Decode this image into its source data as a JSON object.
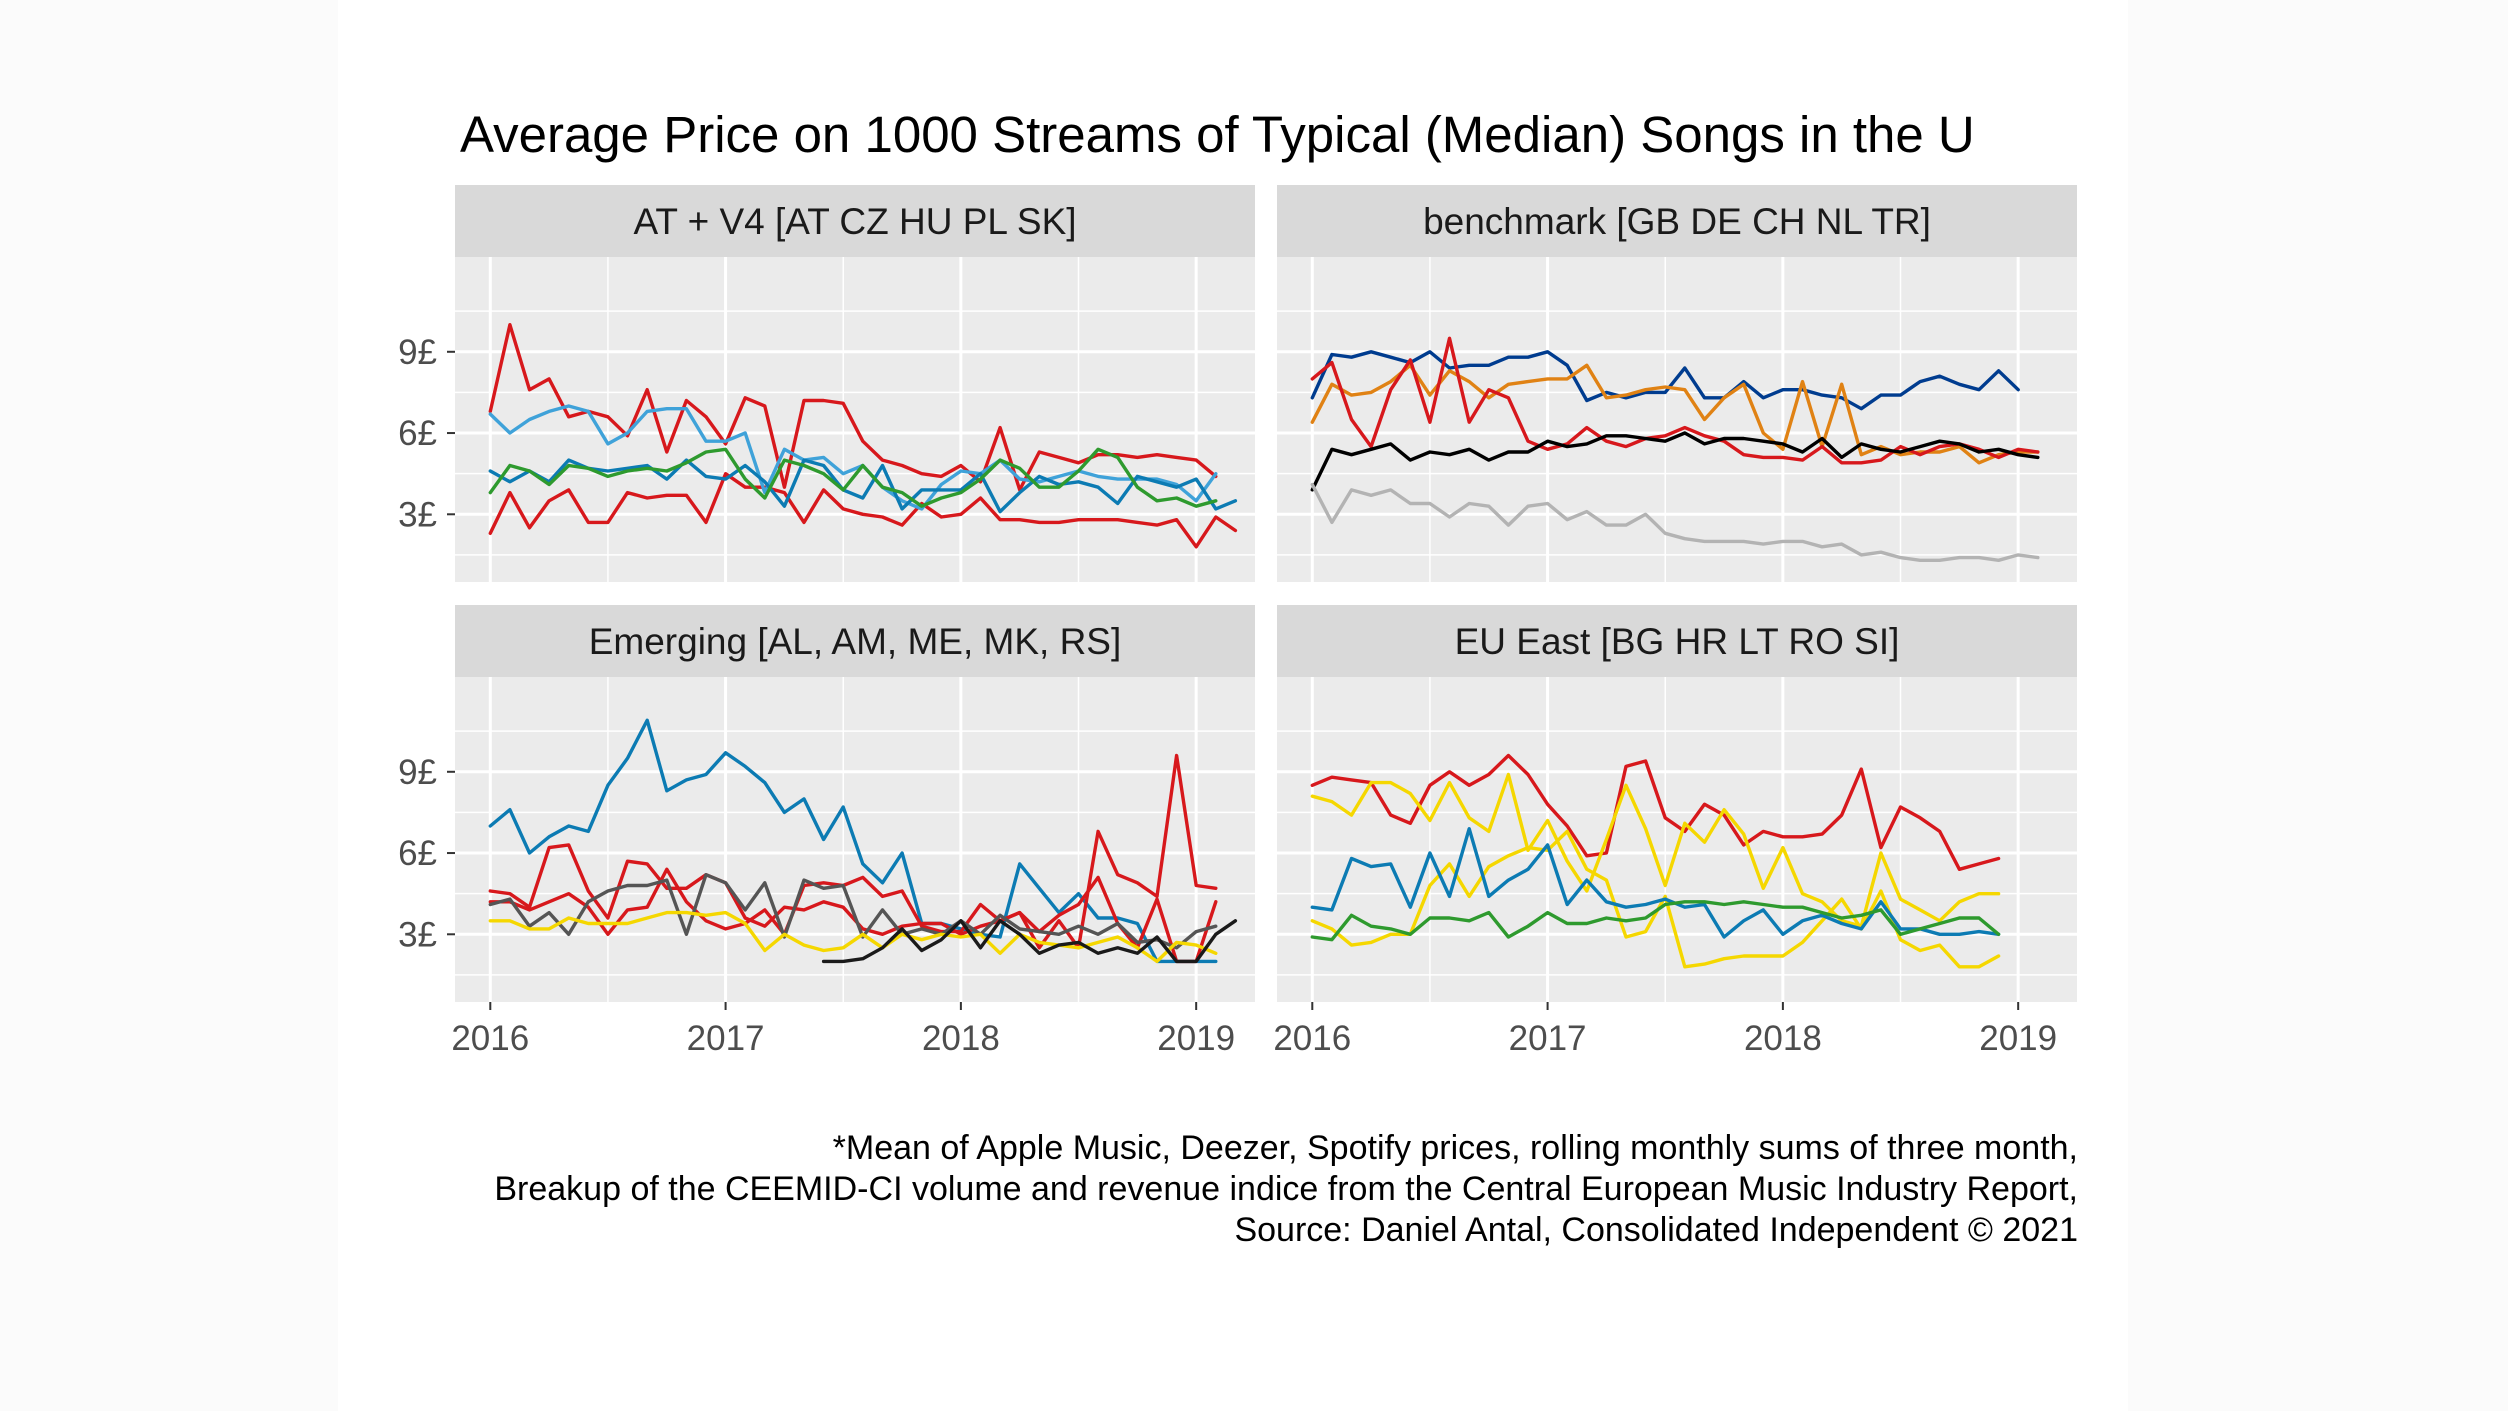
{
  "title": "Average Price on 1000 Streams of Typical (Median) Songs in the U",
  "caption": [
    "*Mean of Apple Music, Deezer, Spotify prices, rolling monthly sums of three month,",
    "Breakup of the CEEMID-CI volume and revenue indice from the Central European Music Industry Report,",
    "Source: Daniel Antal, Consolidated Independent © 2021"
  ],
  "chart_data": {
    "type": "line",
    "title": "Average Price on 1000 Streams of Typical (Median) Songs in the U",
    "xlabel": "",
    "ylabel": "",
    "x_start": 2016.0,
    "x_step": 0.0833333,
    "xlim": [
      2015.85,
      2019.25
    ],
    "ylim": [
      0.5,
      12.5
    ],
    "x_ticks": [
      2016,
      2017,
      2018,
      2019
    ],
    "x_tick_labels": [
      "2016",
      "2017",
      "2018",
      "2019"
    ],
    "y_ticks": [
      3,
      6,
      9
    ],
    "y_tick_labels": [
      "3£",
      "6£",
      "9£"
    ],
    "grid": true,
    "legend": "none",
    "panels": [
      {
        "name": "AT + V4 [AT CZ HU PL SK]",
        "series": [
          {
            "color": "#D7181C",
            "values": [
              6.8,
              10.0,
              7.6,
              8.0,
              6.6,
              6.8,
              6.6,
              5.9,
              7.6,
              5.3,
              7.2,
              6.6,
              5.6,
              7.3,
              7.0,
              4.0,
              7.2,
              7.2,
              7.1,
              5.7,
              5.0,
              4.8,
              4.5,
              4.4,
              4.8,
              4.2,
              6.2,
              3.9,
              5.3,
              5.1,
              4.9,
              5.2,
              5.2,
              5.1,
              5.2,
              5.1,
              5.0,
              4.4
            ]
          },
          {
            "color": "#D7181C",
            "values": [
              2.3,
              3.8,
              2.5,
              3.5,
              3.9,
              2.7,
              2.7,
              3.8,
              3.6,
              3.7,
              3.7,
              2.7,
              4.5,
              4.0,
              4.0,
              3.8,
              2.7,
              3.9,
              3.2,
              3.0,
              2.9,
              2.6,
              3.4,
              2.9,
              3.0,
              3.6,
              2.8,
              2.8,
              2.7,
              2.7,
              2.8,
              2.8,
              2.8,
              2.7,
              2.6,
              2.8,
              1.8,
              2.9,
              2.4
            ]
          },
          {
            "color": "#3FA2D9",
            "values": [
              6.7,
              6.0,
              6.5,
              6.8,
              7.0,
              6.8,
              5.6,
              6.0,
              6.8,
              6.9,
              6.9,
              5.7,
              5.7,
              6.0,
              3.8,
              5.4,
              5.0,
              5.1,
              4.5,
              4.8,
              4.0,
              3.5,
              3.2,
              4.1,
              4.6,
              4.5,
              5.0,
              4.3,
              4.2,
              4.4,
              4.6,
              4.4,
              4.3,
              4.3,
              4.3,
              4.1,
              3.5,
              4.5
            ]
          },
          {
            "color": "#0C7BB3",
            "values": [
              4.6,
              4.2,
              4.6,
              4.2,
              5.0,
              4.7,
              4.6,
              4.7,
              4.8,
              4.3,
              5.0,
              4.4,
              4.3,
              4.8,
              4.2,
              3.3,
              5.0,
              4.8,
              3.9,
              3.6,
              4.8,
              3.2,
              3.9,
              3.9,
              3.9,
              4.5,
              3.1,
              3.8,
              4.4,
              4.1,
              4.2,
              4.0,
              3.4,
              4.4,
              4.2,
              4.0,
              4.3,
              3.2,
              3.5
            ]
          },
          {
            "color": "#2E9A2E",
            "values": [
              3.8,
              4.8,
              4.6,
              4.1,
              4.8,
              4.7,
              4.4,
              4.6,
              4.7,
              4.6,
              4.9,
              5.3,
              5.4,
              4.3,
              3.6,
              5.0,
              4.8,
              4.5,
              3.9,
              4.8,
              4.0,
              3.8,
              3.3,
              3.6,
              3.8,
              4.3,
              5.0,
              4.7,
              4.0,
              4.0,
              4.6,
              5.4,
              5.1,
              4.0,
              3.5,
              3.6,
              3.3,
              3.5
            ]
          }
        ]
      },
      {
        "name": "benchmark [GB DE CH NL TR]",
        "series": [
          {
            "color": "#003C8F",
            "values": [
              7.3,
              8.9,
              8.8,
              9.0,
              8.8,
              8.6,
              9.0,
              8.4,
              8.5,
              8.5,
              8.8,
              8.8,
              9.0,
              8.5,
              7.2,
              7.5,
              7.3,
              7.5,
              7.5,
              8.4,
              7.3,
              7.3,
              7.9,
              7.3,
              7.6,
              7.6,
              7.4,
              7.3,
              6.9,
              7.4,
              7.4,
              7.9,
              8.1,
              7.8,
              7.6,
              8.3,
              7.6
            ]
          },
          {
            "color": "#E08214",
            "values": [
              6.4,
              7.8,
              7.4,
              7.5,
              7.9,
              8.5,
              7.4,
              8.3,
              7.9,
              7.3,
              7.8,
              7.9,
              8.0,
              8.0,
              8.5,
              7.3,
              7.4,
              7.6,
              7.7,
              7.6,
              6.5,
              7.3,
              7.8,
              6.0,
              5.4,
              7.9,
              5.5,
              7.8,
              5.2,
              5.5,
              5.2,
              5.3,
              5.3,
              5.5,
              4.9,
              5.2,
              5.3,
              5.3
            ]
          },
          {
            "color": "#D7181C",
            "values": [
              8.0,
              8.6,
              6.5,
              5.5,
              7.6,
              8.7,
              6.4,
              9.5,
              6.4,
              7.6,
              7.3,
              5.7,
              5.4,
              5.6,
              6.2,
              5.7,
              5.5,
              5.8,
              5.9,
              6.2,
              5.9,
              5.7,
              5.2,
              5.1,
              5.1,
              5.0,
              5.5,
              4.9,
              4.9,
              5.0,
              5.5,
              5.2,
              5.5,
              5.6,
              5.4,
              5.1,
              5.4,
              5.3
            ]
          },
          {
            "color": "#000000",
            "values": [
              3.9,
              5.4,
              5.2,
              5.4,
              5.6,
              5.0,
              5.3,
              5.2,
              5.4,
              5.0,
              5.3,
              5.3,
              5.7,
              5.5,
              5.6,
              5.9,
              5.9,
              5.8,
              5.7,
              6.0,
              5.6,
              5.8,
              5.8,
              5.7,
              5.6,
              5.3,
              5.8,
              5.1,
              5.6,
              5.4,
              5.3,
              5.5,
              5.7,
              5.6,
              5.3,
              5.4,
              5.2,
              5.1
            ]
          },
          {
            "color": "#B3B3B3",
            "values": [
              4.1,
              2.7,
              3.9,
              3.7,
              3.9,
              3.4,
              3.4,
              2.9,
              3.4,
              3.3,
              2.6,
              3.3,
              3.4,
              2.8,
              3.1,
              2.6,
              2.6,
              3.0,
              2.3,
              2.1,
              2.0,
              2.0,
              2.0,
              1.9,
              2.0,
              2.0,
              1.8,
              1.9,
              1.5,
              1.6,
              1.4,
              1.3,
              1.3,
              1.4,
              1.4,
              1.3,
              1.5,
              1.4
            ]
          }
        ]
      },
      {
        "name": "Emerging [AL, AM, ME, MK, RS]",
        "series": [
          {
            "color": "#0C7BB3",
            "values": [
              7.0,
              7.6,
              6.0,
              6.6,
              7.0,
              6.8,
              8.5,
              9.5,
              10.9,
              8.3,
              8.7,
              8.9,
              9.7,
              9.2,
              8.6,
              7.5,
              8.0,
              6.5,
              7.7,
              5.6,
              4.9,
              6.0,
              3.4,
              3.4,
              3.2,
              3.0,
              2.9,
              5.6,
              4.7,
              3.8,
              4.5,
              3.6,
              3.6,
              3.4,
              2.0,
              2.0,
              2.0,
              2.0
            ]
          },
          {
            "color": "#D7181C",
            "values": [
              4.6,
              4.5,
              4.0,
              6.2,
              6.3,
              4.6,
              3.6,
              5.7,
              5.6,
              4.7,
              4.7,
              5.2,
              4.9,
              3.6,
              3.3,
              4.0,
              3.9,
              4.2,
              4.0,
              3.2,
              3.0,
              3.3,
              3.4,
              3.4,
              3.0,
              3.3,
              3.5,
              3.8,
              2.5,
              3.5,
              2.5,
              6.8,
              5.2,
              4.9,
              4.4,
              9.6,
              4.8,
              4.7
            ]
          },
          {
            "color": "#D7181C",
            "values": [
              4.2,
              4.2,
              3.9,
              4.2,
              4.5,
              4.0,
              3.0,
              3.9,
              4.0,
              5.4,
              4.2,
              3.5,
              3.2,
              3.4,
              3.9,
              3.0,
              4.8,
              4.9,
              4.8,
              5.1,
              4.4,
              4.6,
              3.3,
              3.1,
              3.1,
              4.1,
              3.5,
              3.8,
              3.1,
              3.7,
              4.1,
              5.1,
              3.4,
              2.5,
              4.3,
              2.0,
              2.0,
              4.2
            ]
          },
          {
            "color": "#555555",
            "values": [
              4.1,
              4.3,
              3.3,
              3.8,
              3.0,
              4.2,
              4.6,
              4.8,
              4.8,
              5.0,
              3.0,
              5.2,
              4.9,
              3.9,
              4.9,
              2.9,
              5.0,
              4.7,
              4.8,
              2.9,
              3.9,
              3.0,
              3.2,
              3.0,
              3.5,
              3.0,
              3.7,
              3.2,
              3.1,
              3.0,
              3.3,
              3.0,
              3.4,
              2.7,
              2.8,
              2.5,
              3.1,
              3.3
            ]
          },
          {
            "color": "#F5D700",
            "values": [
              3.5,
              3.5,
              3.2,
              3.2,
              3.6,
              3.4,
              3.4,
              3.4,
              3.6,
              3.8,
              3.8,
              3.7,
              3.8,
              3.4,
              2.4,
              3.0,
              2.6,
              2.4,
              2.5,
              3.0,
              2.5,
              3.0,
              2.8,
              3.0,
              2.9,
              3.0,
              2.3,
              3.0,
              2.7,
              2.6,
              2.5,
              2.7,
              2.9,
              2.5,
              2.0,
              2.7,
              2.6,
              2.3
            ]
          },
          {
            "color": "#1A1A1A",
            "values": [
              null,
              null,
              null,
              null,
              null,
              null,
              null,
              null,
              null,
              null,
              null,
              null,
              null,
              null,
              null,
              null,
              null,
              2.0,
              2.0,
              2.1,
              2.5,
              3.2,
              2.4,
              2.8,
              3.5,
              2.5,
              3.5,
              3.0,
              2.3,
              2.6,
              2.7,
              2.3,
              2.5,
              2.3,
              2.9,
              2.0,
              2.0,
              3.0,
              3.5
            ]
          }
        ]
      },
      {
        "name": "EU East [BG HR LT RO SI]",
        "series": [
          {
            "color": "#D7181C",
            "values": [
              8.5,
              8.8,
              8.7,
              8.6,
              7.4,
              7.1,
              8.5,
              9.0,
              8.5,
              8.9,
              9.6,
              8.9,
              7.8,
              7.0,
              5.9,
              6.0,
              9.2,
              9.4,
              7.3,
              6.8,
              7.8,
              7.4,
              6.3,
              6.8,
              6.6,
              6.6,
              6.7,
              7.4,
              9.1,
              6.2,
              7.7,
              7.3,
              6.8,
              5.4,
              5.6,
              5.8
            ]
          },
          {
            "color": "#F5D700",
            "values": [
              8.1,
              7.9,
              7.4,
              8.6,
              8.6,
              8.2,
              7.2,
              8.6,
              7.3,
              6.8,
              8.9,
              6.1,
              7.2,
              5.7,
              4.6,
              6.5,
              8.5,
              6.9,
              4.8,
              7.1,
              6.4,
              7.6,
              6.7,
              4.7,
              6.2,
              4.5,
              4.2,
              3.5,
              3.3,
              6.0,
              4.3,
              3.9,
              3.5,
              4.2,
              4.5,
              4.5
            ]
          },
          {
            "color": "#F5D700",
            "values": [
              3.5,
              3.2,
              2.6,
              2.7,
              3.0,
              3.0,
              4.8,
              5.6,
              4.4,
              5.5,
              5.9,
              6.2,
              6.1,
              6.8,
              5.4,
              5.0,
              2.9,
              3.1,
              4.4,
              1.8,
              1.9,
              2.1,
              2.2,
              2.2,
              2.2,
              2.7,
              3.5,
              4.3,
              3.2,
              4.6,
              2.8,
              2.4,
              2.6,
              1.8,
              1.8,
              2.2
            ]
          },
          {
            "color": "#0C7BB3",
            "values": [
              4.0,
              3.9,
              5.8,
              5.5,
              5.6,
              4.0,
              6.0,
              4.4,
              6.9,
              4.4,
              5.0,
              5.4,
              6.3,
              4.1,
              5.0,
              4.2,
              4.0,
              4.1,
              4.3,
              4.0,
              4.1,
              2.9,
              3.5,
              3.9,
              3.0,
              3.5,
              3.7,
              3.4,
              3.2,
              4.2,
              3.2,
              3.2,
              3.0,
              3.0,
              3.1,
              3.0
            ]
          },
          {
            "color": "#2E9A2E",
            "values": [
              2.9,
              2.8,
              3.7,
              3.3,
              3.2,
              3.0,
              3.6,
              3.6,
              3.5,
              3.8,
              2.9,
              3.3,
              3.8,
              3.4,
              3.4,
              3.6,
              3.5,
              3.6,
              4.1,
              4.2,
              4.2,
              4.1,
              4.2,
              4.1,
              4.0,
              4.0,
              3.8,
              3.6,
              3.7,
              3.9,
              3.0,
              3.2,
              3.4,
              3.6,
              3.6,
              3.0
            ]
          }
        ]
      }
    ]
  }
}
